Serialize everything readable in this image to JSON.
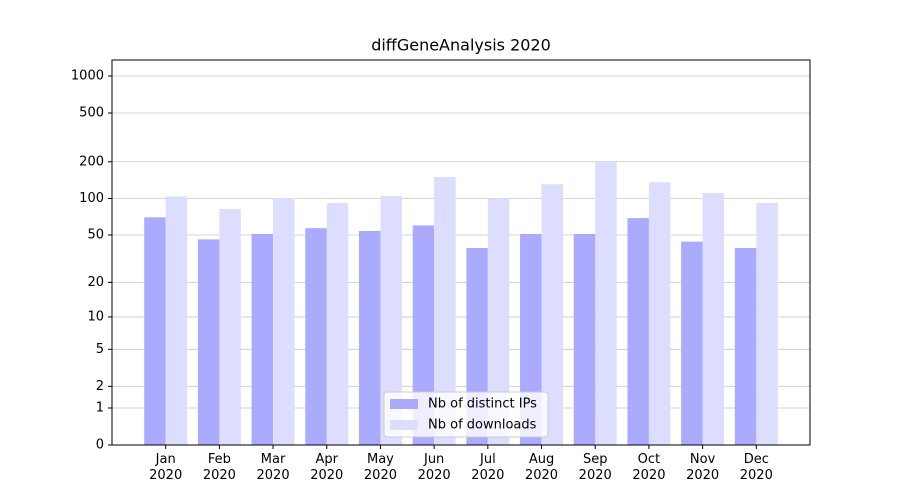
{
  "chart_data": {
    "type": "bar",
    "title": "diffGeneAnalysis 2020",
    "categories": [
      "Jan\n2020",
      "Feb\n2020",
      "Mar\n2020",
      "Apr\n2020",
      "May\n2020",
      "Jun\n2020",
      "Jul\n2020",
      "Aug\n2020",
      "Sep\n2020",
      "Oct\n2020",
      "Nov\n2020",
      "Dec\n2020"
    ],
    "series": [
      {
        "name": "Nb of distinct IPs",
        "color": "#aaaaff",
        "values": [
          70,
          46,
          51,
          57,
          54,
          60,
          39,
          51,
          51,
          69,
          44,
          39
        ]
      },
      {
        "name": "Nb of downloads",
        "color": "#ddddff",
        "values": [
          104,
          82,
          101,
          92,
          105,
          150,
          100,
          131,
          199,
          136,
          111,
          92
        ]
      }
    ],
    "yscale": "log1p",
    "ylim": [
      0,
      1350
    ],
    "yticks": [
      0,
      1,
      2,
      5,
      10,
      20,
      50,
      100,
      200,
      500,
      1000
    ],
    "grid": true,
    "legend": "lower center"
  }
}
